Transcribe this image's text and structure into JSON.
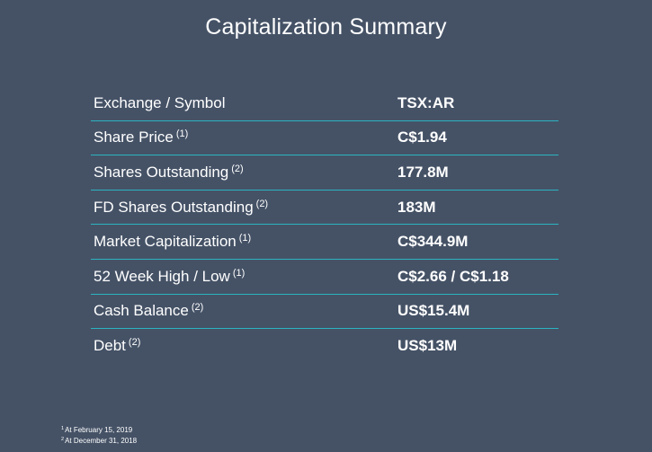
{
  "title": "Capitalization Summary",
  "rows": [
    {
      "label": "Exchange / Symbol",
      "note": "",
      "value": "TSX:AR"
    },
    {
      "label": "Share Price",
      "note": "(1)",
      "value": "C$1.94"
    },
    {
      "label": "Shares Outstanding",
      "note": "(2)",
      "value": "177.8M"
    },
    {
      "label": "FD Shares Outstanding",
      "note": "(2)",
      "value": "183M"
    },
    {
      "label": "Market Capitalization",
      "note": "(1)",
      "value": "C$344.9M"
    },
    {
      "label": "52 Week High / Low",
      "note": "(1)",
      "value": "C$2.66 / C$1.18"
    },
    {
      "label": "Cash Balance",
      "note": "(2)",
      "value": "US$15.4M"
    },
    {
      "label": "Debt",
      "note": "(2)",
      "value": "US$13M"
    }
  ],
  "footnotes": [
    {
      "mark": "1",
      "text": "At February 15, 2019"
    },
    {
      "mark": "2",
      "text": "At December 31, 2018"
    }
  ],
  "colors": {
    "background": "#455266",
    "divider": "#2bb3c0",
    "text": "#ffffff"
  }
}
